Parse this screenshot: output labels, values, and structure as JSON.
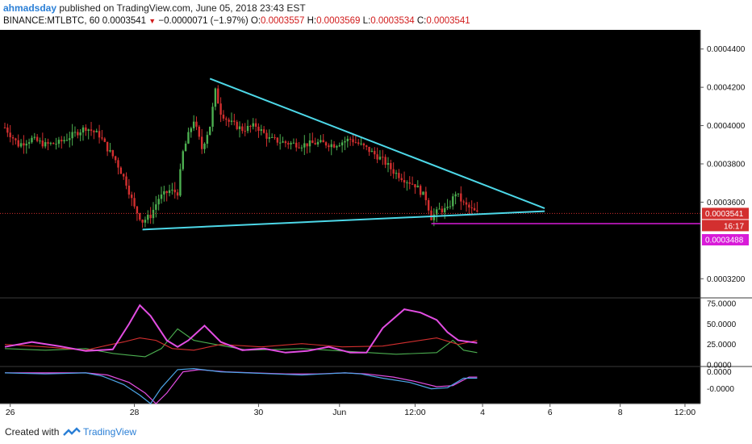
{
  "header": {
    "author": "ahmadsday",
    "published_text": "published on TradingView.com, June 05, 2018 23:43 EST",
    "symbol": "BINANCE:MTLBTC, 60",
    "last": "0.0003541",
    "change": "−0.0000071 (−1.97%)",
    "o_label": "O:",
    "o_value": "0.0003557",
    "h_label": "H:",
    "h_value": "0.0003569",
    "l_label": "L:",
    "l_value": "0.0003534",
    "c_label": "C:",
    "c_value": "0.0003541"
  },
  "price_axis": {
    "ticks": [
      "0.0004400",
      "0.0004200",
      "0.0004000",
      "0.0003800",
      "0.0003600",
      "0.0003200"
    ],
    "last_price_tag": "0.0003541",
    "countdown_tag": "16:17",
    "support_tag": "0.0003488"
  },
  "indicator_axis": {
    "ticks": [
      "75.0000",
      "50.0000",
      "25.0000",
      "0.0000"
    ]
  },
  "macd_axis": {
    "ticks": [
      "0.0000",
      "-0.0000"
    ]
  },
  "time_axis": {
    "labels": [
      "26",
      "28",
      "30",
      "Jun",
      "12:00",
      "4",
      "6",
      "8",
      "12:00"
    ]
  },
  "footer": {
    "created_with": "Created with",
    "brand": "TradingView"
  },
  "colors": {
    "background": "#000000",
    "up_candle": "#4caf50",
    "down_candle": "#d32f2f",
    "trendline": "#4dd8e8",
    "support_line": "#d81bd8",
    "last_price_line": "#d32f2f",
    "adx": "#e24de2",
    "plus_di": "#4caf50",
    "minus_di": "#d32f2f",
    "macd": "#4da6e8",
    "signal": "#e24de2"
  },
  "chart_data": {
    "type": "candlestick",
    "symbol": "BINANCE:MTLBTC",
    "interval": "60",
    "price_ylim": [
      0.00031,
      0.00045
    ],
    "price_ticks": [
      0.00044,
      0.00042,
      0.0004,
      0.00038,
      0.00036,
      0.00032
    ],
    "last_price": 0.0003541,
    "support_level": 0.0003488,
    "close_path": [
      {
        "i": 0,
        "close": 0.000399
      },
      {
        "i": 5,
        "close": 0.00039
      },
      {
        "i": 10,
        "close": 0.000393
      },
      {
        "i": 15,
        "close": 0.00039
      },
      {
        "i": 20,
        "close": 0.000391
      },
      {
        "i": 25,
        "close": 0.000395
      },
      {
        "i": 30,
        "close": 0.000399
      },
      {
        "i": 35,
        "close": 0.000395
      },
      {
        "i": 38,
        "close": 0.000388
      },
      {
        "i": 41,
        "close": 0.000382
      },
      {
        "i": 45,
        "close": 0.00037
      },
      {
        "i": 48,
        "close": 0.000357
      },
      {
        "i": 51,
        "close": 0.00035
      },
      {
        "i": 54,
        "close": 0.000353
      },
      {
        "i": 57,
        "close": 0.000362
      },
      {
        "i": 61,
        "close": 0.000366
      },
      {
        "i": 64,
        "close": 0.000365
      },
      {
        "i": 66,
        "close": 0.000386
      },
      {
        "i": 68,
        "close": 0.000395
      },
      {
        "i": 70,
        "close": 0.000403
      },
      {
        "i": 73,
        "close": 0.000388
      },
      {
        "i": 76,
        "close": 0.0004
      },
      {
        "i": 78,
        "close": 0.000418
      },
      {
        "i": 80,
        "close": 0.000407
      },
      {
        "i": 83,
        "close": 0.000402
      },
      {
        "i": 88,
        "close": 0.000398
      },
      {
        "i": 93,
        "close": 0.0004
      },
      {
        "i": 98,
        "close": 0.000393
      },
      {
        "i": 104,
        "close": 0.000391
      },
      {
        "i": 110,
        "close": 0.00039
      },
      {
        "i": 116,
        "close": 0.000391
      },
      {
        "i": 122,
        "close": 0.00039
      },
      {
        "i": 128,
        "close": 0.000393
      },
      {
        "i": 134,
        "close": 0.000388
      },
      {
        "i": 140,
        "close": 0.000382
      },
      {
        "i": 144,
        "close": 0.000376
      },
      {
        "i": 148,
        "close": 0.000372
      },
      {
        "i": 152,
        "close": 0.000369
      },
      {
        "i": 156,
        "close": 0.000362
      },
      {
        "i": 158,
        "close": 0.000352
      },
      {
        "i": 161,
        "close": 0.000356
      },
      {
        "i": 164,
        "close": 0.000356
      },
      {
        "i": 167,
        "close": 0.000365
      },
      {
        "i": 170,
        "close": 0.000359
      },
      {
        "i": 173,
        "close": 0.000356
      },
      {
        "i": 175,
        "close": 0.0003541
      }
    ],
    "trendlines": [
      {
        "name": "upper",
        "from": {
          "i": 76,
          "price": 0.0004245
        },
        "to": {
          "i": 200,
          "price": 0.0003568
        }
      },
      {
        "name": "lower",
        "from": {
          "i": 51,
          "price": 0.0003457
        },
        "to": {
          "i": 200,
          "price": 0.0003553
        }
      }
    ],
    "indicator_panel": {
      "ylim": [
        0,
        80
      ],
      "ticks": [
        75,
        50,
        25,
        0
      ],
      "adx": [
        [
          0,
          22
        ],
        [
          10,
          28
        ],
        [
          20,
          23
        ],
        [
          30,
          17
        ],
        [
          40,
          19
        ],
        [
          46,
          50
        ],
        [
          50,
          73
        ],
        [
          54,
          60
        ],
        [
          60,
          30
        ],
        [
          64,
          22
        ],
        [
          68,
          30
        ],
        [
          74,
          48
        ],
        [
          80,
          28
        ],
        [
          88,
          18
        ],
        [
          96,
          20
        ],
        [
          104,
          15
        ],
        [
          112,
          17
        ],
        [
          120,
          22
        ],
        [
          128,
          15
        ],
        [
          134,
          15
        ],
        [
          140,
          45
        ],
        [
          148,
          68
        ],
        [
          154,
          64
        ],
        [
          160,
          55
        ],
        [
          164,
          40
        ],
        [
          168,
          30
        ],
        [
          175,
          27
        ]
      ],
      "plus_di": [
        [
          0,
          20
        ],
        [
          15,
          18
        ],
        [
          30,
          20
        ],
        [
          40,
          14
        ],
        [
          46,
          12
        ],
        [
          52,
          10
        ],
        [
          58,
          20
        ],
        [
          64,
          44
        ],
        [
          70,
          30
        ],
        [
          78,
          25
        ],
        [
          90,
          18
        ],
        [
          110,
          20
        ],
        [
          130,
          16
        ],
        [
          145,
          13
        ],
        [
          160,
          15
        ],
        [
          166,
          30
        ],
        [
          170,
          18
        ],
        [
          175,
          15
        ]
      ],
      "minus_di": [
        [
          0,
          25
        ],
        [
          15,
          22
        ],
        [
          30,
          18
        ],
        [
          38,
          24
        ],
        [
          44,
          28
        ],
        [
          50,
          33
        ],
        [
          56,
          30
        ],
        [
          62,
          20
        ],
        [
          70,
          18
        ],
        [
          80,
          25
        ],
        [
          95,
          22
        ],
        [
          110,
          26
        ],
        [
          125,
          22
        ],
        [
          140,
          23
        ],
        [
          150,
          28
        ],
        [
          160,
          33
        ],
        [
          168,
          25
        ],
        [
          175,
          30
        ]
      ]
    },
    "macd_panel": {
      "ylim": [
        -3e-05,
        5e-06
      ],
      "ticks": [
        "0.0000",
        "-0.0000"
      ],
      "macd": [
        [
          0,
          -1e-06
        ],
        [
          15,
          -2e-06
        ],
        [
          30,
          -1e-06
        ],
        [
          36,
          -4e-06
        ],
        [
          44,
          -1.2e-05
        ],
        [
          50,
          -2.2e-05
        ],
        [
          54,
          -3e-05
        ],
        [
          58,
          -1.5e-05
        ],
        [
          64,
          2e-06
        ],
        [
          70,
          3e-06
        ],
        [
          80,
          0.0
        ],
        [
          90,
          -1e-06
        ],
        [
          100,
          -2e-06
        ],
        [
          110,
          -3e-06
        ],
        [
          118,
          -2e-06
        ],
        [
          126,
          -1e-06
        ],
        [
          132,
          -2e-06
        ],
        [
          140,
          -6e-06
        ],
        [
          150,
          -1e-05
        ],
        [
          158,
          -1.6e-05
        ],
        [
          164,
          -1.5e-05
        ],
        [
          170,
          -6e-06
        ],
        [
          175,
          -6e-06
        ]
      ],
      "signal": [
        [
          0,
          -1e-06
        ],
        [
          15,
          -1e-06
        ],
        [
          30,
          -1e-06
        ],
        [
          38,
          -3e-06
        ],
        [
          46,
          -1e-05
        ],
        [
          52,
          -2e-05
        ],
        [
          56,
          -3e-05
        ],
        [
          60,
          -2e-05
        ],
        [
          66,
          0.0
        ],
        [
          72,
          2e-06
        ],
        [
          82,
          0.0
        ],
        [
          92,
          -1e-06
        ],
        [
          104,
          -2e-06
        ],
        [
          116,
          -2e-06
        ],
        [
          126,
          -1e-06
        ],
        [
          134,
          -2e-06
        ],
        [
          144,
          -5e-06
        ],
        [
          152,
          -9e-06
        ],
        [
          160,
          -1.4e-05
        ],
        [
          166,
          -1.3e-05
        ],
        [
          172,
          -5e-06
        ],
        [
          175,
          -5e-06
        ]
      ]
    },
    "time_labels": [
      {
        "label": "26",
        "i": 2
      },
      {
        "label": "28",
        "i": 48
      },
      {
        "label": "30",
        "i": 94
      },
      {
        "label": "Jun",
        "i": 124
      },
      {
        "label": "12:00",
        "i": 152
      },
      {
        "label": "4",
        "i": 177
      },
      {
        "label": "6",
        "i": 202
      },
      {
        "label": "8",
        "i": 228
      },
      {
        "label": "12:00",
        "i": 252
      }
    ]
  }
}
